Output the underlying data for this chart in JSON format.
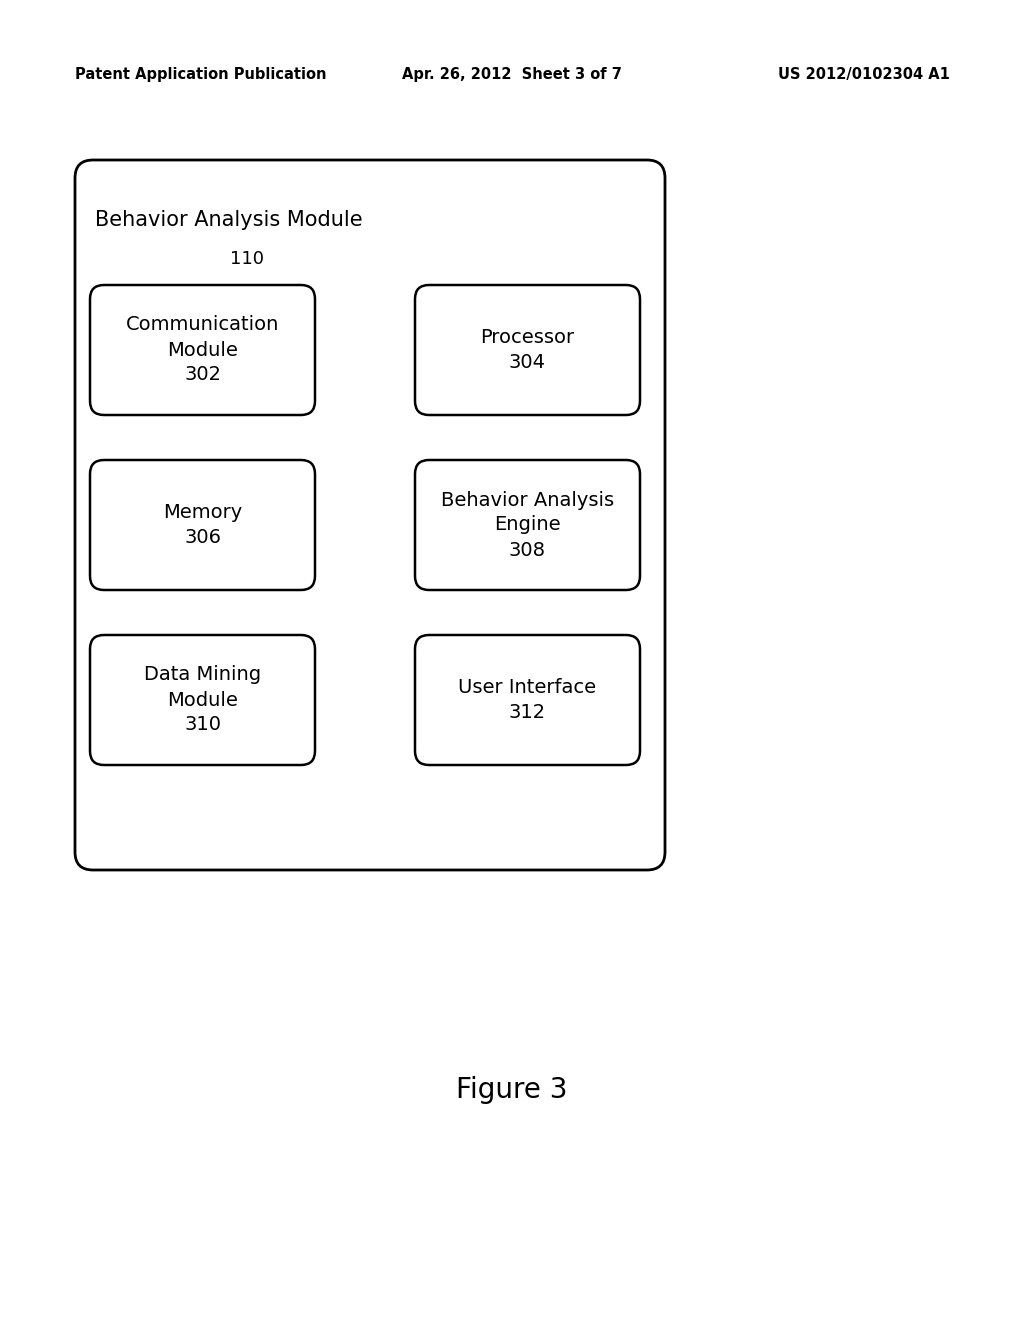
{
  "header_left": "Patent Application Publication",
  "header_center": "Apr. 26, 2012  Sheet 3 of 7",
  "header_right": "US 2012/0102304 A1",
  "outer_box_label": "Behavior Analysis Module",
  "outer_box_number": "110",
  "figure_label": "Figure 3",
  "boxes": [
    {
      "label": "Communication\nModule\n302",
      "col": 0,
      "row": 0
    },
    {
      "label": "Processor\n304",
      "col": 1,
      "row": 0
    },
    {
      "label": "Memory\n306",
      "col": 0,
      "row": 1
    },
    {
      "label": "Behavior Analysis\nEngine\n308",
      "col": 1,
      "row": 1
    },
    {
      "label": "Data Mining\nModule\n310",
      "col": 0,
      "row": 2
    },
    {
      "label": "User Interface\n312",
      "col": 1,
      "row": 2
    }
  ],
  "bg_color": "#ffffff",
  "box_edge_color": "#000000",
  "text_color": "#000000",
  "header_fontsize": 10.5,
  "outer_label_fontsize": 15,
  "outer_number_fontsize": 13,
  "inner_fontsize": 14,
  "figure_fontsize": 20
}
